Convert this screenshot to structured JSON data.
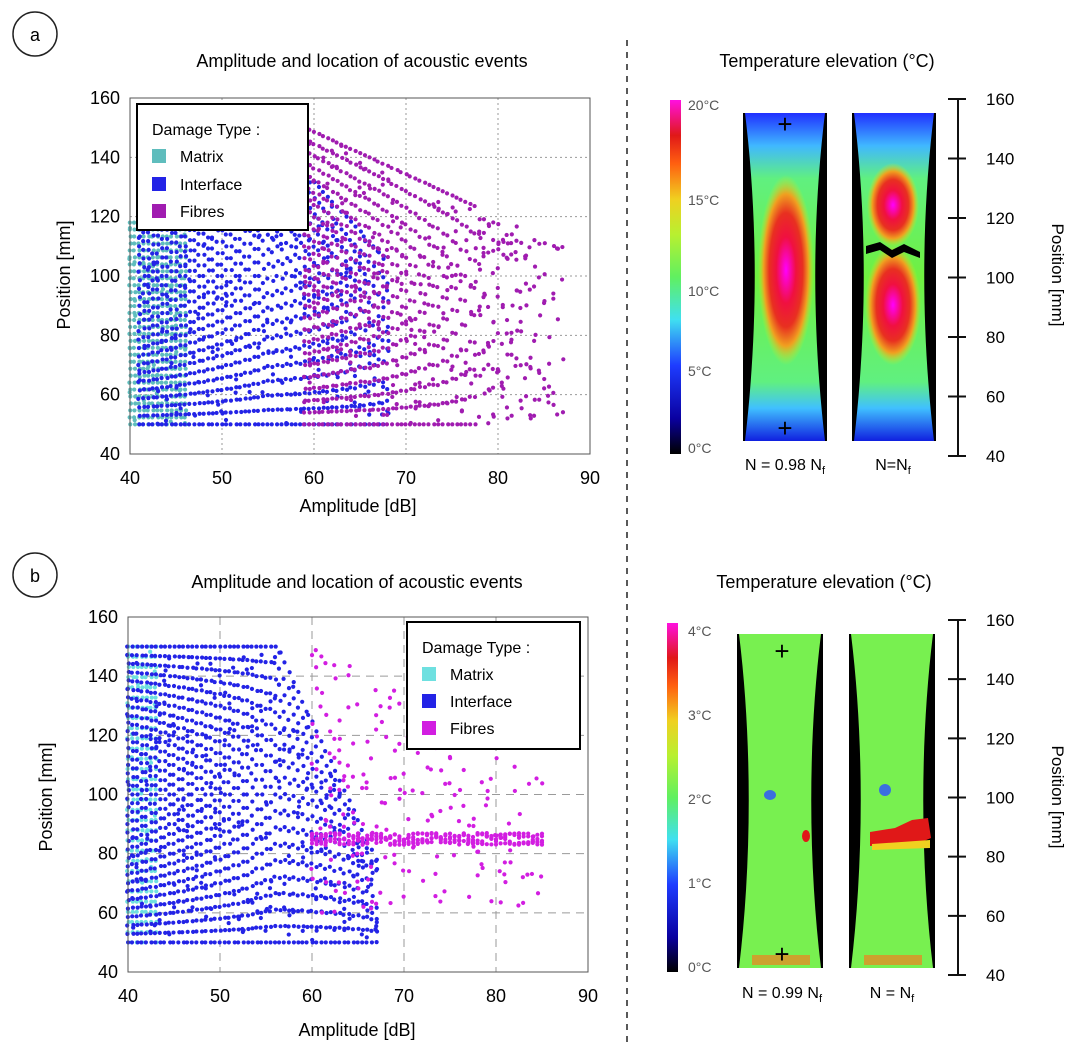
{
  "panels": [
    {
      "label": "a",
      "scatter_title": "Amplitude and location of acoustic events",
      "thermo_title": "Temperature elevation  (°C)",
      "colorbar_ticks": [
        "20°C",
        "15°C",
        "10°C",
        "5°C",
        "0°C"
      ],
      "image_captions": [
        "N = 0.98 N",
        "N=N"
      ],
      "caption_subscript": "f",
      "right_axis_label": "Position [mm]",
      "right_axis_ticks": [
        "160",
        "140",
        "120",
        "100",
        "80",
        "60",
        "40"
      ]
    },
    {
      "label": "b",
      "scatter_title": "Amplitude and location of acoustic events",
      "thermo_title": "Temperature elevation (°C)",
      "colorbar_ticks": [
        "4°C",
        "3°C",
        "2°C",
        "1°C",
        "0°C"
      ],
      "image_captions": [
        "N = 0.99 N",
        "N = N"
      ],
      "caption_subscript": "f",
      "right_axis_label": "Position [mm]",
      "right_axis_ticks": [
        "160",
        "140",
        "120",
        "100",
        "80",
        "60",
        "40"
      ]
    }
  ],
  "legend": {
    "title": "Damage Type :",
    "items": [
      {
        "label": "Matrix",
        "color": "#5fbdbd"
      },
      {
        "label": "Interface",
        "color": "#2323e6"
      },
      {
        "label": "Fibres",
        "color": "#a01cb0"
      }
    ]
  },
  "chart_data": [
    {
      "type": "scatter",
      "title": "Amplitude and location of acoustic events",
      "xlabel": "Amplitude [dB]",
      "ylabel": "Position [mm]",
      "xlim": [
        40,
        90
      ],
      "ylim": [
        40,
        160
      ],
      "xticks": [
        40,
        50,
        60,
        70,
        80,
        90
      ],
      "yticks": [
        40,
        60,
        80,
        100,
        120,
        140,
        160
      ],
      "grid": "dotted",
      "legend_position": "top-left",
      "series": [
        {
          "name": "Matrix",
          "color": "#5fbdbd",
          "amplitude_range": [
            40,
            46
          ],
          "position_range": [
            50,
            118
          ]
        },
        {
          "name": "Interface",
          "color": "#2323e6",
          "amplitude_range": [
            41,
            68
          ],
          "position_range": [
            50,
            150
          ]
        },
        {
          "name": "Fibres",
          "color": "#a01cb0",
          "amplitude_range": [
            59,
            87
          ],
          "position_range": [
            50,
            150
          ]
        }
      ]
    },
    {
      "type": "scatter",
      "title": "Amplitude and location of acoustic events",
      "xlabel": "Amplitude [dB]",
      "ylabel": "Position [mm]",
      "xlim": [
        40,
        90
      ],
      "ylim": [
        40,
        160
      ],
      "xticks": [
        40,
        50,
        60,
        70,
        80,
        90
      ],
      "yticks": [
        40,
        60,
        80,
        100,
        120,
        140,
        160
      ],
      "grid": "dashed",
      "legend_position": "top-right",
      "series": [
        {
          "name": "Matrix",
          "color": "#6ee0e0",
          "amplitude_range": [
            40,
            43
          ],
          "position_range": [
            50,
            150
          ]
        },
        {
          "name": "Interface",
          "color": "#2323e6",
          "amplitude_range": [
            40,
            67
          ],
          "position_range": [
            50,
            150
          ]
        },
        {
          "name": "Fibres",
          "color": "#d21ee1",
          "amplitude_range": [
            60,
            85
          ],
          "position_range": [
            60,
            150
          ],
          "cluster_position": 85
        }
      ]
    }
  ],
  "colors": {
    "matrix_a": "#5fbdbd",
    "matrix_b": "#6ee0e0",
    "interface": "#2323e6",
    "fibres_a": "#a01cb0",
    "fibres_b": "#d21ee1"
  }
}
